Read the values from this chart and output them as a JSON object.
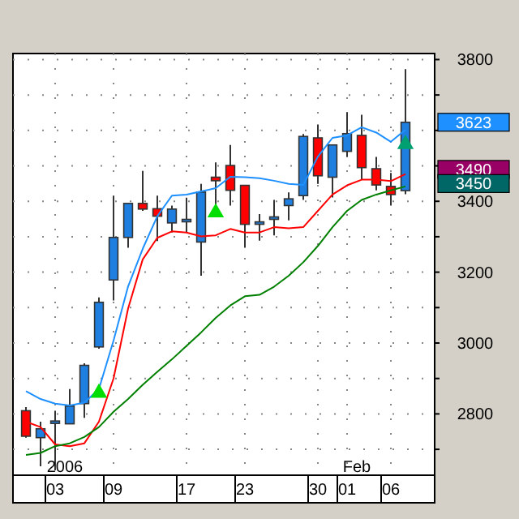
{
  "chart_data": {
    "type": "candlestick",
    "categories": [
      null,
      null,
      "03",
      null,
      null,
      null,
      "09",
      null,
      null,
      null,
      null,
      "17",
      null,
      null,
      null,
      "23",
      null,
      null,
      null,
      null,
      "30",
      null,
      "01",
      null,
      null,
      "06",
      null
    ],
    "ohlc": [
      [
        2809,
        2819,
        2733,
        2737
      ],
      [
        2733,
        2778,
        2652,
        2758
      ],
      [
        2780,
        2809,
        2641,
        2780
      ],
      [
        2772,
        2870,
        2772,
        2822
      ],
      [
        2829,
        2943,
        2789,
        2937
      ],
      [
        2989,
        3129,
        2984,
        3115
      ],
      [
        3178,
        3416,
        3120,
        3298
      ],
      [
        3298,
        3394,
        3269,
        3394
      ],
      [
        3394,
        3486,
        3373,
        3378
      ],
      [
        3379,
        3416,
        3288,
        3358
      ],
      [
        3339,
        3388,
        3312,
        3378
      ],
      [
        3349,
        3410,
        3312,
        3349
      ],
      [
        3285,
        3449,
        3190,
        3426
      ],
      [
        3468,
        3510,
        3388,
        3458
      ],
      [
        3501,
        3559,
        3388,
        3431
      ],
      [
        3445,
        3445,
        3269,
        3335
      ],
      [
        3342,
        3364,
        3289,
        3342
      ],
      [
        3349,
        3404,
        3304,
        3356
      ],
      [
        3388,
        3425,
        3346,
        3407
      ],
      [
        3416,
        3590,
        3404,
        3583
      ],
      [
        3579,
        3617,
        3449,
        3472
      ],
      [
        3468,
        3559,
        3411,
        3559
      ],
      [
        3541,
        3651,
        3526,
        3591
      ],
      [
        3586,
        3644,
        3461,
        3495
      ],
      [
        3492,
        3525,
        3431,
        3446
      ],
      [
        3442,
        3480,
        3388,
        3419
      ],
      [
        3430,
        3773,
        3420,
        3623
      ]
    ],
    "colors": [
      "#ff0000",
      "#1e7fe0",
      "#1e7fe0",
      "#1e7fe0",
      "#1e7fe0",
      "#1e7fe0",
      "#1e7fe0",
      "#1e7fe0",
      "#ff0000",
      "#ff0000",
      "#1e7fe0",
      "#1e7fe0",
      "#1e7fe0",
      "#ff0000",
      "#ff0000",
      "#ff0000",
      "#1e7fe0",
      "#1e7fe0",
      "#1e7fe0",
      "#1e7fe0",
      "#ff0000",
      "#1e7fe0",
      "#1e7fe0",
      "#ff0000",
      "#ff0000",
      "#ff0000",
      "#1e7fe0"
    ],
    "series": [
      {
        "type": "line",
        "color": "#1e90ff",
        "values": [
          2864,
          2842,
          2829,
          2824,
          2832,
          2870,
          3007,
          3160,
          3266,
          3358,
          3416,
          3419,
          3428,
          3437,
          3469,
          3468,
          3465,
          3458,
          3449,
          3446,
          3526,
          3579,
          3586,
          3609,
          3594,
          3568,
          3602
        ]
      },
      {
        "type": "line",
        "color": "#ff0000",
        "values": [
          2778,
          2763,
          2714,
          2709,
          2717,
          2778,
          2900,
          3098,
          3236,
          3297,
          3315,
          3312,
          3301,
          3304,
          3322,
          3312,
          3312,
          3327,
          3324,
          3327,
          3373,
          3419,
          3445,
          3461,
          3461,
          3457,
          3477
        ]
      },
      {
        "type": "line",
        "color": "#008000",
        "values": [
          2684,
          2690,
          2709,
          2717,
          2735,
          2763,
          2806,
          2842,
          2882,
          2919,
          2954,
          2992,
          3030,
          3071,
          3106,
          3132,
          3136,
          3159,
          3190,
          3228,
          3274,
          3327,
          3373,
          3404,
          3419,
          3431,
          3442
        ]
      },
      {
        "type": "scatter",
        "marker": "triangle",
        "color": "#00dd00",
        "values": [
          null,
          null,
          null,
          null,
          null,
          2859,
          null,
          null,
          null,
          null,
          null,
          null,
          null,
          3368,
          null,
          null,
          null,
          null,
          null,
          null,
          null,
          null,
          null,
          null,
          null,
          null,
          null
        ]
      },
      {
        "type": "scatter",
        "marker": "triangle",
        "color": "#00a070",
        "values": [
          null,
          null,
          null,
          null,
          null,
          null,
          null,
          null,
          null,
          null,
          null,
          null,
          null,
          null,
          null,
          null,
          null,
          null,
          null,
          null,
          null,
          null,
          null,
          null,
          null,
          null,
          3561
        ]
      }
    ],
    "ylim": [
      2627,
      3817
    ],
    "yticks": [
      {
        "value": 2700,
        "label": null
      },
      2800,
      {
        "value": 2900,
        "label": null
      },
      3000,
      {
        "value": 3100,
        "label": null
      },
      3200,
      {
        "value": 3300,
        "label": null
      },
      3400,
      {
        "value": 3500,
        "label": null
      },
      {
        "value": 3600,
        "label": null
      },
      {
        "value": 3700,
        "label": null
      },
      3800
    ],
    "grid": true,
    "annotations": [
      "2006",
      "Feb",
      "3623",
      "3490",
      "3450"
    ]
  }
}
